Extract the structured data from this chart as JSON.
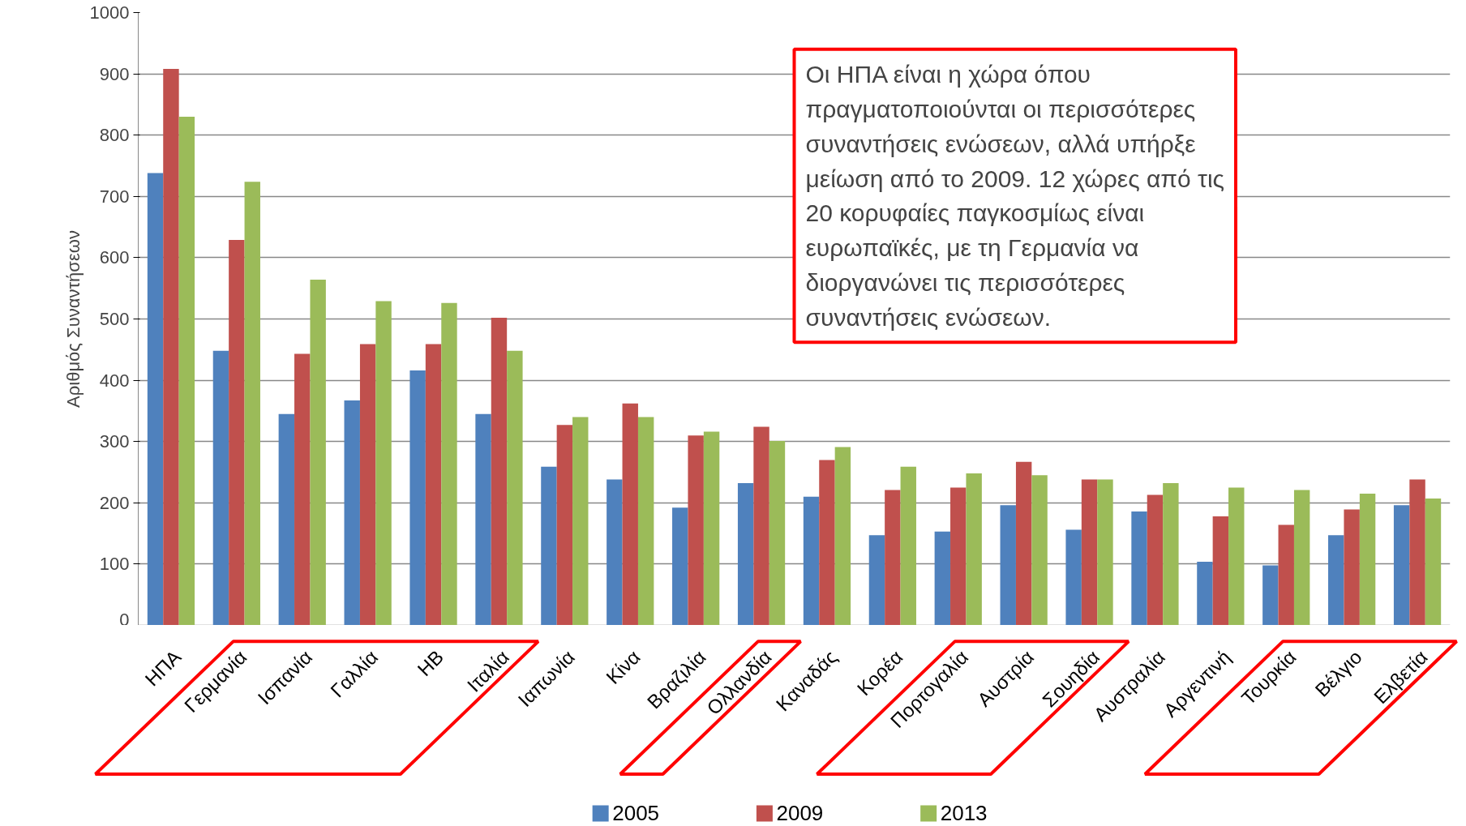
{
  "chart_data": {
    "type": "bar",
    "ylabel": "Αριθμός Συναντήσεων",
    "categories": [
      "ΗΠΑ",
      "Γερμανία",
      "Ισπανία",
      "Γαλλία",
      "ΗΒ",
      "Ιταλία",
      "Ιαπωνία",
      "Κίνα",
      "Βραζιλία",
      "Ολλανδία",
      "Καναδάς",
      "Κορέα",
      "Πορτογαλία",
      "Αυστρία",
      "Σουηδία",
      "Αυστραλία",
      "Αργεντινή",
      "Τουρκία",
      "Βέλγιο",
      "Ελβετία"
    ],
    "series": [
      {
        "name": "2005",
        "color": "#4f81bd",
        "values": [
          738,
          448,
          345,
          367,
          416,
          345,
          259,
          238,
          192,
          232,
          210,
          147,
          153,
          196,
          156,
          186,
          104,
          98,
          147,
          196
        ]
      },
      {
        "name": "2009",
        "color": "#c0504d",
        "values": [
          908,
          629,
          443,
          459,
          459,
          502,
          327,
          362,
          310,
          324,
          270,
          221,
          225,
          267,
          238,
          213,
          178,
          164,
          189,
          238
        ]
      },
      {
        "name": "2013",
        "color": "#9bbb59",
        "values": [
          830,
          724,
          564,
          529,
          526,
          448,
          340,
          340,
          316,
          301,
          291,
          259,
          248,
          245,
          238,
          232,
          225,
          221,
          215,
          207
        ]
      }
    ],
    "ylim": [
      0,
      1000
    ],
    "yticks": [
      0,
      100,
      200,
      300,
      400,
      500,
      600,
      700,
      800,
      900,
      1000
    ],
    "grid": "y",
    "legend": "bottom",
    "annotations": [
      "Οι ΗΠΑ είναι η χώρα όπου πραγματοποιούνται οι περισσότερες συναντήσεις ενώσεων, αλλά υπήρξε μείωση από το 2009. 12 χώρες από τις 20 κορυφαίες παγκοσμίως είναι ευρωπαϊκές, με τη Γερμανία να διοργανώνει τις περισσότερες συναντήσεις ενώσεων."
    ]
  }
}
